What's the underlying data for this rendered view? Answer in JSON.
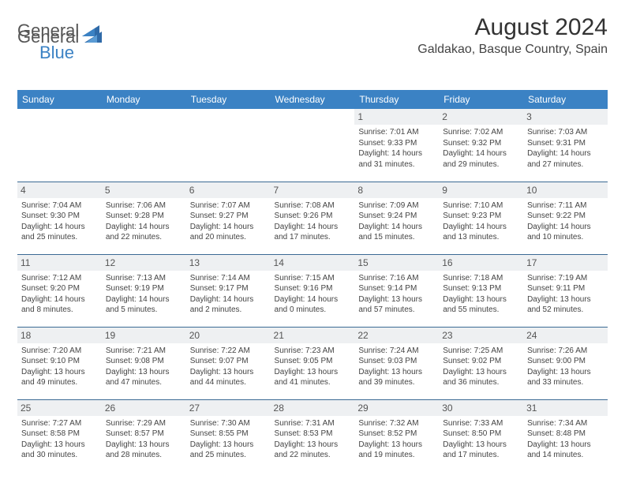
{
  "brand": {
    "general": "General",
    "blue": "Blue"
  },
  "title": "August 2024",
  "location": "Galdakao, Basque Country, Spain",
  "colors": {
    "header_bg": "#3b82c4",
    "header_text": "#ffffff",
    "row_divider": "#3b6a94",
    "daynum_bg": "#eef0f2",
    "body_text": "#444444",
    "page_bg": "#ffffff"
  },
  "typography": {
    "title_fontsize": 30,
    "location_fontsize": 16,
    "header_fontsize": 12,
    "daynum_fontsize": 12,
    "cell_fontsize": 10
  },
  "daysOfWeek": [
    "Sunday",
    "Monday",
    "Tuesday",
    "Wednesday",
    "Thursday",
    "Friday",
    "Saturday"
  ],
  "weeks": [
    [
      {
        "n": "",
        "sr": "",
        "ss": "",
        "dl": ""
      },
      {
        "n": "",
        "sr": "",
        "ss": "",
        "dl": ""
      },
      {
        "n": "",
        "sr": "",
        "ss": "",
        "dl": ""
      },
      {
        "n": "",
        "sr": "",
        "ss": "",
        "dl": ""
      },
      {
        "n": "1",
        "sr": "Sunrise: 7:01 AM",
        "ss": "Sunset: 9:33 PM",
        "dl": "Daylight: 14 hours and 31 minutes."
      },
      {
        "n": "2",
        "sr": "Sunrise: 7:02 AM",
        "ss": "Sunset: 9:32 PM",
        "dl": "Daylight: 14 hours and 29 minutes."
      },
      {
        "n": "3",
        "sr": "Sunrise: 7:03 AM",
        "ss": "Sunset: 9:31 PM",
        "dl": "Daylight: 14 hours and 27 minutes."
      }
    ],
    [
      {
        "n": "4",
        "sr": "Sunrise: 7:04 AM",
        "ss": "Sunset: 9:30 PM",
        "dl": "Daylight: 14 hours and 25 minutes."
      },
      {
        "n": "5",
        "sr": "Sunrise: 7:06 AM",
        "ss": "Sunset: 9:28 PM",
        "dl": "Daylight: 14 hours and 22 minutes."
      },
      {
        "n": "6",
        "sr": "Sunrise: 7:07 AM",
        "ss": "Sunset: 9:27 PM",
        "dl": "Daylight: 14 hours and 20 minutes."
      },
      {
        "n": "7",
        "sr": "Sunrise: 7:08 AM",
        "ss": "Sunset: 9:26 PM",
        "dl": "Daylight: 14 hours and 17 minutes."
      },
      {
        "n": "8",
        "sr": "Sunrise: 7:09 AM",
        "ss": "Sunset: 9:24 PM",
        "dl": "Daylight: 14 hours and 15 minutes."
      },
      {
        "n": "9",
        "sr": "Sunrise: 7:10 AM",
        "ss": "Sunset: 9:23 PM",
        "dl": "Daylight: 14 hours and 13 minutes."
      },
      {
        "n": "10",
        "sr": "Sunrise: 7:11 AM",
        "ss": "Sunset: 9:22 PM",
        "dl": "Daylight: 14 hours and 10 minutes."
      }
    ],
    [
      {
        "n": "11",
        "sr": "Sunrise: 7:12 AM",
        "ss": "Sunset: 9:20 PM",
        "dl": "Daylight: 14 hours and 8 minutes."
      },
      {
        "n": "12",
        "sr": "Sunrise: 7:13 AM",
        "ss": "Sunset: 9:19 PM",
        "dl": "Daylight: 14 hours and 5 minutes."
      },
      {
        "n": "13",
        "sr": "Sunrise: 7:14 AM",
        "ss": "Sunset: 9:17 PM",
        "dl": "Daylight: 14 hours and 2 minutes."
      },
      {
        "n": "14",
        "sr": "Sunrise: 7:15 AM",
        "ss": "Sunset: 9:16 PM",
        "dl": "Daylight: 14 hours and 0 minutes."
      },
      {
        "n": "15",
        "sr": "Sunrise: 7:16 AM",
        "ss": "Sunset: 9:14 PM",
        "dl": "Daylight: 13 hours and 57 minutes."
      },
      {
        "n": "16",
        "sr": "Sunrise: 7:18 AM",
        "ss": "Sunset: 9:13 PM",
        "dl": "Daylight: 13 hours and 55 minutes."
      },
      {
        "n": "17",
        "sr": "Sunrise: 7:19 AM",
        "ss": "Sunset: 9:11 PM",
        "dl": "Daylight: 13 hours and 52 minutes."
      }
    ],
    [
      {
        "n": "18",
        "sr": "Sunrise: 7:20 AM",
        "ss": "Sunset: 9:10 PM",
        "dl": "Daylight: 13 hours and 49 minutes."
      },
      {
        "n": "19",
        "sr": "Sunrise: 7:21 AM",
        "ss": "Sunset: 9:08 PM",
        "dl": "Daylight: 13 hours and 47 minutes."
      },
      {
        "n": "20",
        "sr": "Sunrise: 7:22 AM",
        "ss": "Sunset: 9:07 PM",
        "dl": "Daylight: 13 hours and 44 minutes."
      },
      {
        "n": "21",
        "sr": "Sunrise: 7:23 AM",
        "ss": "Sunset: 9:05 PM",
        "dl": "Daylight: 13 hours and 41 minutes."
      },
      {
        "n": "22",
        "sr": "Sunrise: 7:24 AM",
        "ss": "Sunset: 9:03 PM",
        "dl": "Daylight: 13 hours and 39 minutes."
      },
      {
        "n": "23",
        "sr": "Sunrise: 7:25 AM",
        "ss": "Sunset: 9:02 PM",
        "dl": "Daylight: 13 hours and 36 minutes."
      },
      {
        "n": "24",
        "sr": "Sunrise: 7:26 AM",
        "ss": "Sunset: 9:00 PM",
        "dl": "Daylight: 13 hours and 33 minutes."
      }
    ],
    [
      {
        "n": "25",
        "sr": "Sunrise: 7:27 AM",
        "ss": "Sunset: 8:58 PM",
        "dl": "Daylight: 13 hours and 30 minutes."
      },
      {
        "n": "26",
        "sr": "Sunrise: 7:29 AM",
        "ss": "Sunset: 8:57 PM",
        "dl": "Daylight: 13 hours and 28 minutes."
      },
      {
        "n": "27",
        "sr": "Sunrise: 7:30 AM",
        "ss": "Sunset: 8:55 PM",
        "dl": "Daylight: 13 hours and 25 minutes."
      },
      {
        "n": "28",
        "sr": "Sunrise: 7:31 AM",
        "ss": "Sunset: 8:53 PM",
        "dl": "Daylight: 13 hours and 22 minutes."
      },
      {
        "n": "29",
        "sr": "Sunrise: 7:32 AM",
        "ss": "Sunset: 8:52 PM",
        "dl": "Daylight: 13 hours and 19 minutes."
      },
      {
        "n": "30",
        "sr": "Sunrise: 7:33 AM",
        "ss": "Sunset: 8:50 PM",
        "dl": "Daylight: 13 hours and 17 minutes."
      },
      {
        "n": "31",
        "sr": "Sunrise: 7:34 AM",
        "ss": "Sunset: 8:48 PM",
        "dl": "Daylight: 13 hours and 14 minutes."
      }
    ]
  ]
}
